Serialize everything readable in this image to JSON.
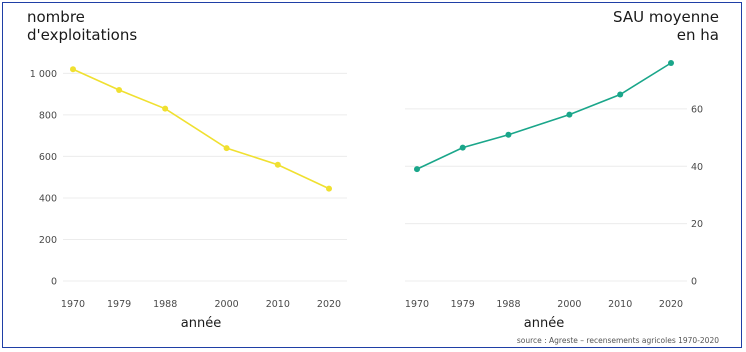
{
  "chart_data": [
    {
      "type": "line",
      "title": "nombre\nd'exploitations",
      "xlabel": "année",
      "ylabel": "nombre d'exploitations",
      "x": [
        "1970",
        "1979",
        "1988",
        "2000",
        "2010",
        "2020"
      ],
      "x_numeric": [
        1970,
        1979,
        1988,
        2000,
        2010,
        2020
      ],
      "ylim": [
        0,
        1050
      ],
      "y_ticks": [
        0,
        200,
        400,
        600,
        800,
        1000
      ],
      "y_tick_labels": [
        "0",
        "200",
        "400",
        "600",
        "800",
        "1 000"
      ],
      "y_axis_side": "left",
      "grid": true,
      "series": [
        {
          "name": "",
          "color": "#f0e030",
          "values": [
            1020,
            920,
            830,
            640,
            560,
            445
          ]
        }
      ]
    },
    {
      "type": "line",
      "title": "SAU moyenne\nen ha",
      "xlabel": "année",
      "ylabel": "SAU moyenne en ha",
      "x": [
        "1970",
        "1979",
        "1988",
        "2000",
        "2010",
        "2020"
      ],
      "x_numeric": [
        1970,
        1979,
        1988,
        2000,
        2010,
        2020
      ],
      "ylim": [
        0,
        76
      ],
      "y_ticks": [
        0,
        20,
        40,
        60
      ],
      "y_tick_labels": [
        "0",
        "20",
        "40",
        "60"
      ],
      "y_axis_side": "right",
      "grid": true,
      "series": [
        {
          "name": "",
          "color": "#1aa68a",
          "values": [
            39,
            46.5,
            51,
            58,
            65,
            76
          ]
        }
      ]
    }
  ],
  "titles": {
    "left_line1": "nombre",
    "left_line2": "d'exploitations",
    "right_line1": "SAU moyenne",
    "right_line2": "en ha"
  },
  "source": "source : Agreste – recensements agricoles 1970-2020"
}
